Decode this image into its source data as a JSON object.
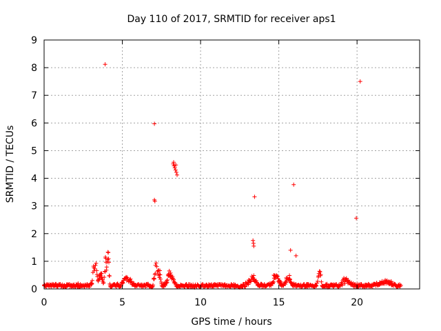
{
  "chart_data": {
    "type": "scatter",
    "title": "Day 110 of 2017, SRMTID for receiver aps1",
    "xlabel": "GPS time / hours",
    "ylabel": "SRMTID / TECUs",
    "xlim": [
      0,
      24
    ],
    "ylim": [
      0,
      9
    ],
    "xticks": [
      "0",
      "5",
      "10",
      "15",
      "20"
    ],
    "yticks": [
      "0",
      "1",
      "2",
      "3",
      "4",
      "5",
      "6",
      "7",
      "8",
      "9"
    ],
    "xtick_values": [
      0,
      5,
      10,
      15,
      20
    ],
    "ytick_values": [
      0,
      1,
      2,
      3,
      4,
      5,
      6,
      7,
      8,
      9
    ],
    "grid": true,
    "marker": "+",
    "color": "#ff0000",
    "series": [
      {
        "name": "SRMTID",
        "outliers": [
          [
            3.9,
            8.12
          ],
          [
            7.05,
            5.97
          ],
          [
            7.05,
            3.22
          ],
          [
            7.08,
            3.17
          ],
          [
            8.25,
            4.52
          ],
          [
            8.3,
            4.45
          ],
          [
            8.35,
            4.38
          ],
          [
            8.4,
            4.3
          ],
          [
            8.45,
            4.22
          ],
          [
            8.5,
            4.12
          ],
          [
            8.28,
            4.58
          ],
          [
            8.42,
            4.48
          ],
          [
            13.45,
            3.33
          ],
          [
            13.35,
            1.75
          ],
          [
            13.38,
            1.65
          ],
          [
            13.4,
            1.55
          ],
          [
            15.95,
            3.77
          ],
          [
            15.75,
            1.4
          ],
          [
            16.1,
            1.2
          ],
          [
            19.95,
            2.56
          ],
          [
            20.2,
            7.5
          ]
        ],
        "baseline": {
          "x_start": 0.0,
          "x_end": 22.8,
          "step": 0.04,
          "level": 0.12
        },
        "bumps": [
          {
            "center": 3.25,
            "width": 0.15,
            "peak": 0.95
          },
          {
            "center": 3.6,
            "width": 0.12,
            "peak": 0.55
          },
          {
            "center": 3.95,
            "width": 0.1,
            "peak": 1.1
          },
          {
            "center": 4.1,
            "width": 0.06,
            "peak": 1.35
          },
          {
            "center": 5.3,
            "width": 0.3,
            "peak": 0.3
          },
          {
            "center": 7.15,
            "width": 0.12,
            "peak": 0.8
          },
          {
            "center": 7.35,
            "width": 0.1,
            "peak": 0.6
          },
          {
            "center": 8.05,
            "width": 0.25,
            "peak": 0.5
          },
          {
            "center": 13.3,
            "width": 0.3,
            "peak": 0.35
          },
          {
            "center": 14.8,
            "width": 0.25,
            "peak": 0.42
          },
          {
            "center": 15.6,
            "width": 0.2,
            "peak": 0.35
          },
          {
            "center": 17.6,
            "width": 0.1,
            "peak": 0.62
          },
          {
            "center": 19.3,
            "width": 0.3,
            "peak": 0.25
          },
          {
            "center": 21.8,
            "width": 0.4,
            "peak": 0.2
          }
        ]
      }
    ]
  }
}
